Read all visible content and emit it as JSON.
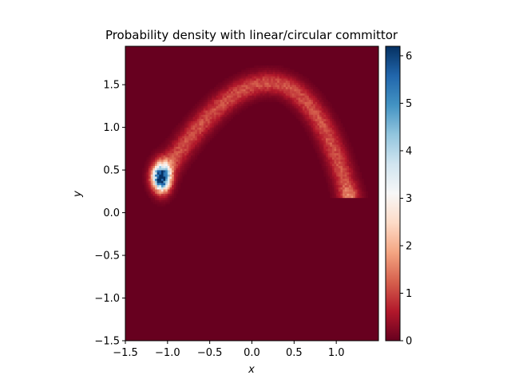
{
  "chart_data": {
    "type": "heatmap",
    "title": "Probability density with linear/circular committor",
    "xlabel": "x",
    "ylabel": "y",
    "xlim": [
      -1.5,
      1.5
    ],
    "ylim": [
      -1.5,
      1.95
    ],
    "x_ticks": [
      "−1.5",
      "−1.0",
      "−0.5",
      "0.0",
      "0.5",
      "1.0"
    ],
    "x_tick_values": [
      -1.5,
      -1.0,
      -0.5,
      0.0,
      0.5,
      1.0
    ],
    "y_ticks": [
      "−1.5",
      "−1.0",
      "−0.5",
      "0.0",
      "0.5",
      "1.0",
      "1.5"
    ],
    "y_tick_values": [
      -1.5,
      -1.0,
      -0.5,
      0.0,
      0.5,
      1.0,
      1.5
    ],
    "colorbar": {
      "colormap": "RdBu",
      "range": [
        0,
        6.2
      ],
      "ticks": [
        "0",
        "1",
        "2",
        "3",
        "4",
        "5",
        "6"
      ],
      "tick_values": [
        0,
        1,
        2,
        3,
        4,
        5,
        6
      ]
    },
    "density_features": [
      {
        "kind": "peak",
        "center": [
          -1.07,
          0.42
        ],
        "value": 6.0
      },
      {
        "kind": "arc",
        "from": [
          -1.07,
          0.42
        ],
        "apex": [
          0.25,
          1.52
        ],
        "to": [
          1.15,
          0.2
        ],
        "value": 1.1
      },
      {
        "kind": "peak",
        "center": [
          1.15,
          0.2
        ],
        "value": 0.5
      }
    ],
    "background_value": 0,
    "grid": false,
    "colors": {
      "low": "#67001f",
      "mid": "#f7f7f7",
      "high": "#053061"
    }
  }
}
